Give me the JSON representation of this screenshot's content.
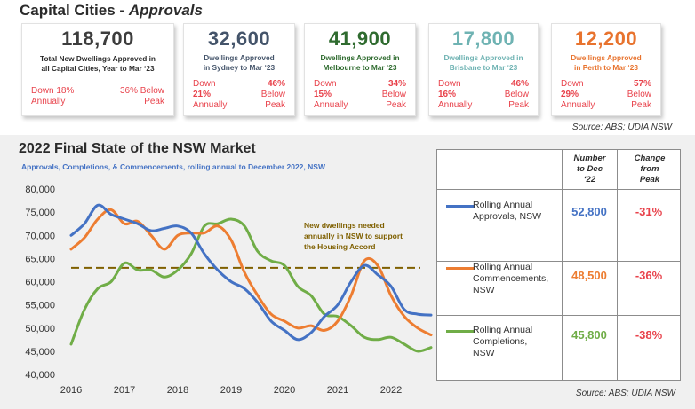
{
  "header": {
    "title_main": "Capital Cities - ",
    "title_em": "Approvals"
  },
  "cards": [
    {
      "value": "118,700",
      "desc_line1": "Total New Dwellings Approved in",
      "desc_line2": "all Capital Cities, Year to Mar ‘23",
      "left_label": "Down 18%",
      "left_label2": "Annually",
      "right_label": "36% Below",
      "right_label2": "Peak",
      "value_color": "#3d3d3d",
      "desc_color": "#2b2b2b"
    },
    {
      "value": "32,600",
      "desc_line1": "Dwellings Approved",
      "desc_line2": "in Sydney to Mar ‘23",
      "left_label": "Down",
      "left_label_b": "21%",
      "left_label2": "Annually",
      "right_label": "46%",
      "right_label_b": "Below",
      "right_label2": "Peak",
      "value_color": "#44546a",
      "desc_color": "#44546a"
    },
    {
      "value": "41,900",
      "desc_line1": "Dwellings Approved in",
      "desc_line2": "Melbourne to Mar ‘23",
      "left_label": "Down",
      "left_label_b": "15%",
      "left_label2": "Annually",
      "right_label": "34%",
      "right_label_b": "Below",
      "right_label2": "Peak",
      "value_color": "#2f6b2f",
      "desc_color": "#2f6b2f"
    },
    {
      "value": "17,800",
      "desc_line1": "Dwellings Approved in",
      "desc_line2": "Brisbane to Mar ‘23",
      "left_label": "Down",
      "left_label_b": "16%",
      "left_label2": "Annually",
      "right_label": "46%",
      "right_label_b": "Below",
      "right_label2": "Peak",
      "value_color": "#6fb3b3",
      "desc_color": "#6fb3b3"
    },
    {
      "value": "12,200",
      "desc_line1": "Dwellings Approved",
      "desc_line2": "in Perth to Mar ‘23",
      "left_label": "Down",
      "left_label_b": "29%",
      "left_label2": "Annually",
      "right_label": "57%",
      "right_label_b": "Below",
      "right_label2": "Peak",
      "value_color": "#e8732e",
      "desc_color": "#e8732e"
    }
  ],
  "source_top": "Source: ABS; UDIA NSW",
  "bottom": {
    "title": "2022 Final State of the NSW Market",
    "subtitle": "Approvals, Completions, & Commencements, rolling annual to December 2022, NSW",
    "annotation": [
      "New dwellings needed",
      "annually in NSW to support",
      "the Housing Accord"
    ],
    "source": "Source: ABS; UDIA NSW"
  },
  "table": {
    "col_number": [
      "Number",
      "to Dec",
      "‘22"
    ],
    "col_change": [
      "Change",
      "from",
      "Peak"
    ],
    "rows": [
      {
        "label": [
          "Rolling Annual",
          "Approvals, NSW"
        ],
        "number": "52,800",
        "change": "-31%",
        "color": "#4472c4"
      },
      {
        "label": [
          "Rolling Annual",
          "Commencements,",
          "NSW"
        ],
        "number": "48,500",
        "change": "-36%",
        "color": "#ed7d31"
      },
      {
        "label": [
          "Rolling Annual",
          "Completions,",
          "NSW"
        ],
        "number": "45,800",
        "change": "-38%",
        "color": "#70ad47"
      }
    ]
  },
  "chart_data": {
    "type": "line",
    "title": "2022 Final State of the NSW Market",
    "subtitle": "Approvals, Completions, & Commencements, rolling annual to December 2022, NSW",
    "xlim": [
      2016,
      2022.75
    ],
    "ylim": [
      40000,
      80000
    ],
    "x_ticks": [
      2016,
      2017,
      2018,
      2019,
      2020,
      2021,
      2022
    ],
    "y_ticks": [
      40000,
      45000,
      50000,
      55000,
      60000,
      65000,
      70000,
      75000,
      80000
    ],
    "y_tick_labels": [
      "40,000",
      "45,000",
      "50,000",
      "55,000",
      "60,000",
      "65,000",
      "70,000",
      "75,000",
      "80,000"
    ],
    "reference_line": {
      "y": 63000,
      "color": "#7f6000",
      "style": "dashed"
    },
    "series": [
      {
        "name": "Rolling Annual Approvals, NSW",
        "color": "#4472c4",
        "points": [
          [
            2016,
            70000
          ],
          [
            2016.25,
            72500
          ],
          [
            2016.5,
            76500
          ],
          [
            2016.75,
            74500
          ],
          [
            2017,
            73500
          ],
          [
            2017.25,
            72500
          ],
          [
            2017.5,
            71000
          ],
          [
            2017.75,
            71500
          ],
          [
            2018,
            72000
          ],
          [
            2018.25,
            70500
          ],
          [
            2018.5,
            66000
          ],
          [
            2018.75,
            62500
          ],
          [
            2019,
            60000
          ],
          [
            2019.25,
            58500
          ],
          [
            2019.5,
            55500
          ],
          [
            2019.75,
            51500
          ],
          [
            2020,
            49500
          ],
          [
            2020.25,
            47500
          ],
          [
            2020.5,
            49000
          ],
          [
            2020.75,
            52500
          ],
          [
            2021,
            55000
          ],
          [
            2021.25,
            60000
          ],
          [
            2021.5,
            63500
          ],
          [
            2021.75,
            61500
          ],
          [
            2022,
            59000
          ],
          [
            2022.25,
            54000
          ],
          [
            2022.5,
            53000
          ],
          [
            2022.75,
            52800
          ]
        ]
      },
      {
        "name": "Rolling Annual Commencements, NSW",
        "color": "#ed7d31",
        "points": [
          [
            2016,
            67000
          ],
          [
            2016.25,
            69500
          ],
          [
            2016.5,
            73500
          ],
          [
            2016.75,
            75500
          ],
          [
            2017,
            72500
          ],
          [
            2017.25,
            73000
          ],
          [
            2017.5,
            70000
          ],
          [
            2017.75,
            67000
          ],
          [
            2018,
            70000
          ],
          [
            2018.25,
            70500
          ],
          [
            2018.5,
            70500
          ],
          [
            2018.75,
            72000
          ],
          [
            2019,
            69000
          ],
          [
            2019.25,
            62000
          ],
          [
            2019.5,
            57000
          ],
          [
            2019.75,
            53000
          ],
          [
            2020,
            51500
          ],
          [
            2020.25,
            50000
          ],
          [
            2020.5,
            50500
          ],
          [
            2020.75,
            49500
          ],
          [
            2021,
            51500
          ],
          [
            2021.25,
            57000
          ],
          [
            2021.5,
            64500
          ],
          [
            2021.75,
            63500
          ],
          [
            2022,
            57000
          ],
          [
            2022.25,
            52500
          ],
          [
            2022.5,
            50000
          ],
          [
            2022.75,
            48500
          ]
        ]
      },
      {
        "name": "Rolling Annual Completions, NSW",
        "color": "#70ad47",
        "points": [
          [
            2016,
            46500
          ],
          [
            2016.25,
            54000
          ],
          [
            2016.5,
            58500
          ],
          [
            2016.75,
            60000
          ],
          [
            2017,
            64000
          ],
          [
            2017.25,
            62500
          ],
          [
            2017.5,
            62500
          ],
          [
            2017.75,
            61000
          ],
          [
            2018,
            62500
          ],
          [
            2018.25,
            66000
          ],
          [
            2018.5,
            72000
          ],
          [
            2018.75,
            72500
          ],
          [
            2019,
            73500
          ],
          [
            2019.25,
            72000
          ],
          [
            2019.5,
            66500
          ],
          [
            2019.75,
            64500
          ],
          [
            2020,
            63500
          ],
          [
            2020.25,
            59000
          ],
          [
            2020.5,
            57000
          ],
          [
            2020.75,
            53000
          ],
          [
            2021,
            52500
          ],
          [
            2021.25,
            50500
          ],
          [
            2021.5,
            48000
          ],
          [
            2021.75,
            47500
          ],
          [
            2022,
            48000
          ],
          [
            2022.25,
            46500
          ],
          [
            2022.5,
            45000
          ],
          [
            2022.75,
            45800
          ]
        ]
      }
    ]
  }
}
